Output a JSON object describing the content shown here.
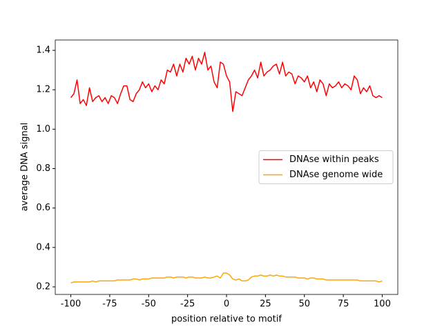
{
  "chart_data": {
    "type": "line",
    "x_label": "position relative to motif",
    "y_label": "average DNA signal",
    "x": [
      -100,
      -98,
      -96,
      -94,
      -92,
      -90,
      -88,
      -86,
      -84,
      -82,
      -80,
      -78,
      -76,
      -74,
      -72,
      -70,
      -68,
      -66,
      -64,
      -62,
      -60,
      -58,
      -56,
      -54,
      -52,
      -50,
      -48,
      -46,
      -44,
      -42,
      -40,
      -38,
      -36,
      -34,
      -32,
      -30,
      -28,
      -26,
      -24,
      -22,
      -20,
      -18,
      -16,
      -14,
      -12,
      -10,
      -8,
      -6,
      -4,
      -2,
      0,
      2,
      4,
      6,
      8,
      10,
      12,
      14,
      16,
      18,
      20,
      22,
      24,
      26,
      28,
      30,
      32,
      34,
      36,
      38,
      40,
      42,
      44,
      46,
      48,
      50,
      52,
      54,
      56,
      58,
      60,
      62,
      64,
      66,
      68,
      70,
      72,
      74,
      76,
      78,
      80,
      82,
      84,
      86,
      88,
      90,
      92,
      94,
      96,
      98,
      100
    ],
    "series": [
      {
        "name": "DNAse within peaks",
        "color": "#ff0000",
        "values": [
          1.16,
          1.18,
          1.25,
          1.13,
          1.15,
          1.12,
          1.21,
          1.14,
          1.16,
          1.17,
          1.14,
          1.16,
          1.13,
          1.17,
          1.16,
          1.13,
          1.18,
          1.22,
          1.22,
          1.15,
          1.14,
          1.18,
          1.2,
          1.24,
          1.21,
          1.23,
          1.19,
          1.22,
          1.2,
          1.25,
          1.23,
          1.3,
          1.29,
          1.33,
          1.27,
          1.33,
          1.29,
          1.36,
          1.33,
          1.37,
          1.3,
          1.36,
          1.33,
          1.39,
          1.3,
          1.32,
          1.24,
          1.21,
          1.34,
          1.33,
          1.27,
          1.24,
          1.09,
          1.19,
          1.18,
          1.17,
          1.21,
          1.25,
          1.27,
          1.3,
          1.26,
          1.34,
          1.27,
          1.29,
          1.3,
          1.32,
          1.33,
          1.28,
          1.34,
          1.27,
          1.29,
          1.28,
          1.23,
          1.27,
          1.26,
          1.24,
          1.27,
          1.21,
          1.24,
          1.19,
          1.25,
          1.23,
          1.17,
          1.23,
          1.21,
          1.22,
          1.24,
          1.21,
          1.23,
          1.22,
          1.2,
          1.27,
          1.25,
          1.18,
          1.21,
          1.19,
          1.22,
          1.17,
          1.16,
          1.17,
          1.16
        ]
      },
      {
        "name": "DNAse genome wide",
        "color": "#ffa500",
        "values": [
          0.22,
          0.225,
          0.225,
          0.225,
          0.225,
          0.225,
          0.225,
          0.23,
          0.225,
          0.23,
          0.23,
          0.23,
          0.23,
          0.23,
          0.23,
          0.235,
          0.235,
          0.235,
          0.235,
          0.235,
          0.24,
          0.24,
          0.235,
          0.24,
          0.24,
          0.24,
          0.245,
          0.245,
          0.245,
          0.245,
          0.245,
          0.25,
          0.25,
          0.245,
          0.25,
          0.25,
          0.25,
          0.245,
          0.25,
          0.25,
          0.245,
          0.245,
          0.245,
          0.25,
          0.245,
          0.245,
          0.25,
          0.255,
          0.245,
          0.27,
          0.27,
          0.26,
          0.24,
          0.235,
          0.24,
          0.23,
          0.23,
          0.235,
          0.25,
          0.255,
          0.255,
          0.26,
          0.255,
          0.255,
          0.26,
          0.255,
          0.26,
          0.255,
          0.255,
          0.25,
          0.25,
          0.25,
          0.25,
          0.245,
          0.245,
          0.245,
          0.24,
          0.245,
          0.245,
          0.24,
          0.24,
          0.24,
          0.235,
          0.235,
          0.235,
          0.235,
          0.235,
          0.235,
          0.235,
          0.235,
          0.235,
          0.235,
          0.235,
          0.23,
          0.23,
          0.23,
          0.23,
          0.23,
          0.23,
          0.225,
          0.23
        ]
      }
    ],
    "xlim": [
      -110,
      110
    ],
    "xticks": [
      -100,
      -75,
      -50,
      -25,
      0,
      25,
      50,
      75,
      100
    ],
    "ylim": [
      0.1615,
      1.4525
    ],
    "yticks": [
      0.2,
      0.4,
      0.6,
      0.8,
      {
        "value": 1,
        "label": "1.0"
      },
      1.2,
      1.4
    ],
    "grid": false,
    "legend": "center right"
  }
}
